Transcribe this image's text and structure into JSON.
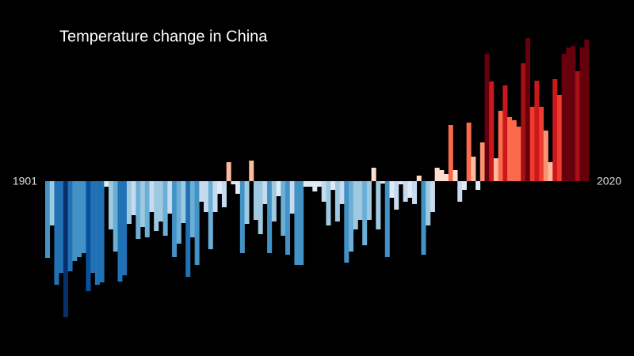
{
  "chart_data": {
    "type": "bar",
    "title": "Temperature change in China",
    "xlim": [
      1901,
      2020
    ],
    "xticks": [
      1901,
      2020
    ],
    "ylim": [
      -1.8,
      1.9
    ],
    "colormap": [
      "#08306b",
      "#08519c",
      "#2171b5",
      "#4292c6",
      "#6baed6",
      "#9ecae1",
      "#c6dbef",
      "#deebf7",
      "#fee0d2",
      "#fcbba1",
      "#fc9272",
      "#fb6a4a",
      "#ef3b2c",
      "#cb181d",
      "#a50f15",
      "#67000d"
    ],
    "background": "#000000",
    "values": [
      -0.97,
      -0.56,
      -1.31,
      -1.16,
      -1.72,
      -1.14,
      -1.01,
      -0.96,
      -0.91,
      -1.39,
      -1.16,
      -1.31,
      -1.28,
      -0.07,
      -0.61,
      -0.89,
      -1.27,
      -1.19,
      -0.54,
      -0.43,
      -0.73,
      -0.58,
      -0.71,
      -0.39,
      -0.63,
      -0.51,
      -0.69,
      -0.41,
      -0.96,
      -0.79,
      -0.53,
      -1.21,
      -0.71,
      -1.06,
      -0.26,
      -0.39,
      -0.86,
      -0.39,
      -0.16,
      -0.33,
      0.24,
      -0.04,
      -0.16,
      -0.91,
      -0.54,
      0.26,
      -0.49,
      -0.67,
      -0.29,
      -0.91,
      -0.51,
      -0.19,
      -0.69,
      -0.93,
      -0.41,
      -1.06,
      -1.06,
      -0.07,
      -0.07,
      -0.13,
      -0.07,
      -0.26,
      -0.56,
      -0.11,
      -0.51,
      -0.29,
      -1.03,
      -0.89,
      -0.61,
      -0.49,
      -0.81,
      -0.49,
      0.17,
      -0.61,
      -0.03,
      -0.96,
      -0.21,
      -0.36,
      -0.04,
      -0.26,
      -0.21,
      -0.29,
      0.07,
      -0.93,
      -0.56,
      -0.39,
      0.17,
      0.14,
      0.09,
      0.71,
      0.14,
      -0.26,
      -0.11,
      0.74,
      0.31,
      -0.11,
      0.49,
      1.61,
      1.26,
      0.29,
      0.89,
      1.21,
      0.81,
      0.77,
      0.69,
      1.49,
      1.81,
      0.94,
      1.27,
      0.94,
      0.64,
      0.24,
      1.29,
      1.09,
      1.61,
      1.69,
      1.71,
      1.39,
      1.69,
      1.79
    ]
  }
}
